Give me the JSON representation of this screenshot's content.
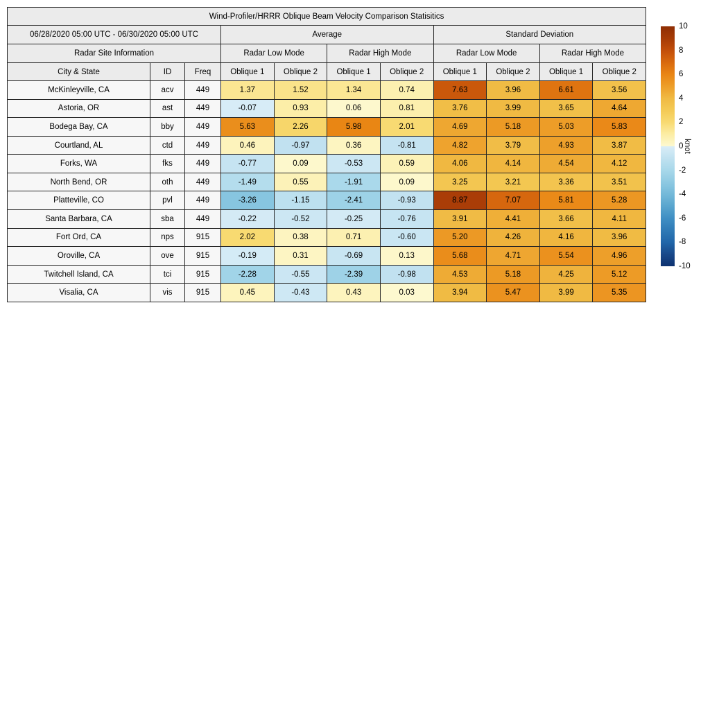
{
  "chart_data": {
    "type": "heatmap",
    "title": "Wind-Profiler/HRRR Oblique Beam Velocity Comparison Statisitics",
    "date_range": "06/28/2020 05:00 UTC - 06/30/2020 05:00 UTC",
    "group_headers": {
      "average": "Average",
      "std": "Standard Deviation"
    },
    "site_info_label": "Radar Site Information",
    "mode_headers": [
      "Radar Low Mode",
      "Radar High Mode",
      "Radar Low Mode",
      "Radar High Mode"
    ],
    "columns": [
      "City & State",
      "ID",
      "Freq",
      "Oblique 1",
      "Oblique 2",
      "Oblique 1",
      "Oblique 2",
      "Oblique 1",
      "Oblique 2",
      "Oblique 1",
      "Oblique 2"
    ],
    "rows": [
      {
        "city": "McKinleyville, CA",
        "id": "acv",
        "freq": "449",
        "values": [
          "1.37",
          "1.52",
          "1.34",
          "0.74",
          "7.63",
          "3.96",
          "6.61",
          "3.56"
        ]
      },
      {
        "city": "Astoria, OR",
        "id": "ast",
        "freq": "449",
        "values": [
          "-0.07",
          "0.93",
          "0.06",
          "0.81",
          "3.76",
          "3.99",
          "3.65",
          "4.64"
        ]
      },
      {
        "city": "Bodega Bay, CA",
        "id": "bby",
        "freq": "449",
        "values": [
          "5.63",
          "2.26",
          "5.98",
          "2.01",
          "4.69",
          "5.18",
          "5.03",
          "5.83"
        ]
      },
      {
        "city": "Courtland, AL",
        "id": "ctd",
        "freq": "449",
        "values": [
          "0.46",
          "-0.97",
          "0.36",
          "-0.81",
          "4.82",
          "3.79",
          "4.93",
          "3.87"
        ]
      },
      {
        "city": "Forks, WA",
        "id": "fks",
        "freq": "449",
        "values": [
          "-0.77",
          "0.09",
          "-0.53",
          "0.59",
          "4.06",
          "4.14",
          "4.54",
          "4.12"
        ]
      },
      {
        "city": "North Bend, OR",
        "id": "oth",
        "freq": "449",
        "values": [
          "-1.49",
          "0.55",
          "-1.91",
          "0.09",
          "3.25",
          "3.21",
          "3.36",
          "3.51"
        ]
      },
      {
        "city": "Platteville, CO",
        "id": "pvl",
        "freq": "449",
        "values": [
          "-3.26",
          "-1.15",
          "-2.41",
          "-0.93",
          "8.87",
          "7.07",
          "5.81",
          "5.28"
        ]
      },
      {
        "city": "Santa Barbara, CA",
        "id": "sba",
        "freq": "449",
        "values": [
          "-0.22",
          "-0.52",
          "-0.25",
          "-0.76",
          "3.91",
          "4.41",
          "3.66",
          "4.11"
        ]
      },
      {
        "city": "Fort Ord, CA",
        "id": "nps",
        "freq": "915",
        "values": [
          "2.02",
          "0.38",
          "0.71",
          "-0.60",
          "5.20",
          "4.26",
          "4.16",
          "3.96"
        ]
      },
      {
        "city": "Oroville, CA",
        "id": "ove",
        "freq": "915",
        "values": [
          "-0.19",
          "0.31",
          "-0.69",
          "0.13",
          "5.68",
          "4.71",
          "5.54",
          "4.96"
        ]
      },
      {
        "city": "Twitchell Island, CA",
        "id": "tci",
        "freq": "915",
        "values": [
          "-2.28",
          "-0.55",
          "-2.39",
          "-0.98",
          "4.53",
          "5.18",
          "4.25",
          "5.12"
        ]
      },
      {
        "city": "Visalia, CA",
        "id": "vis",
        "freq": "915",
        "values": [
          "0.45",
          "-0.43",
          "0.43",
          "0.03",
          "3.94",
          "5.47",
          "3.99",
          "5.35"
        ]
      }
    ],
    "colorbar": {
      "label": "knot",
      "vmin": -10,
      "vmax": 10,
      "ticks": [
        "10",
        "8",
        "6",
        "4",
        "2",
        "0",
        "-2",
        "-4",
        "-6",
        "-8",
        "-10"
      ],
      "colormap_anchors": [
        {
          "v": -10,
          "c": "#0d3270"
        },
        {
          "v": -9,
          "c": "#19498a"
        },
        {
          "v": -8,
          "c": "#2166a9"
        },
        {
          "v": -7,
          "c": "#2f7ab6"
        },
        {
          "v": -6,
          "c": "#3f8fc4"
        },
        {
          "v": -5,
          "c": "#59a5ce"
        },
        {
          "v": -4,
          "c": "#74b9d9"
        },
        {
          "v": -3,
          "c": "#8ec9e2"
        },
        {
          "v": -2,
          "c": "#a8d8ea"
        },
        {
          "v": -1,
          "c": "#c0e1f0"
        },
        {
          "v": -0.001,
          "c": "#d9edf7"
        },
        {
          "v": 0,
          "c": "#fdf9d0"
        },
        {
          "v": 1,
          "c": "#fceda5"
        },
        {
          "v": 2,
          "c": "#f8da72"
        },
        {
          "v": 3,
          "c": "#f4ca55"
        },
        {
          "v": 4,
          "c": "#f0ba43"
        },
        {
          "v": 5,
          "c": "#ed9e29"
        },
        {
          "v": 6,
          "c": "#e98514"
        },
        {
          "v": 7,
          "c": "#d8690e"
        },
        {
          "v": 8,
          "c": "#c24e0a"
        },
        {
          "v": 9,
          "c": "#a63b06"
        },
        {
          "v": 10,
          "c": "#8f2e04"
        }
      ]
    }
  }
}
